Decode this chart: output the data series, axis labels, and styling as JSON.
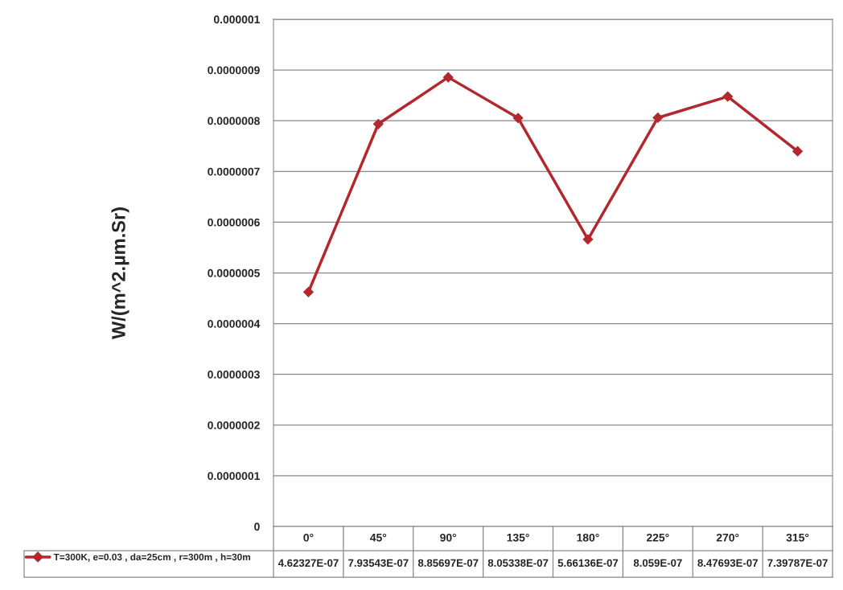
{
  "chart_data": {
    "type": "line",
    "ylabel": "W/(m^2.µm.Sr)",
    "categories": [
      "0°",
      "45°",
      "90°",
      "135°",
      "180°",
      "225°",
      "270°",
      "315°"
    ],
    "series": [
      {
        "name": "T=300K, e=0.03 , da=25cm , r=300m , h=30m",
        "color": "#b3282d",
        "values": [
          4.62327e-07,
          7.93543e-07,
          8.85697e-07,
          8.05338e-07,
          5.66136e-07,
          8.059e-07,
          8.47693e-07,
          7.39787e-07
        ],
        "value_labels": [
          "4.62327E-07",
          "7.93543E-07",
          "8.85697E-07",
          "8.05338E-07",
          "5.66136E-07",
          "8.059E-07",
          "8.47693E-07",
          "7.39787E-07"
        ]
      }
    ],
    "ylim": [
      0,
      1e-06
    ],
    "yticks": [
      0,
      {
        "value": 1e-07,
        "label": "0.0000001"
      },
      {
        "value": 2e-07,
        "label": "0.0000002"
      },
      {
        "value": 3e-07,
        "label": "0.0000003"
      },
      {
        "value": 4e-07,
        "label": "0.0000004"
      },
      {
        "value": 5e-07,
        "label": "0.0000005"
      },
      {
        "value": 6e-07,
        "label": "0.0000006"
      },
      {
        "value": 7e-07,
        "label": "0.0000007"
      },
      {
        "value": 8e-07,
        "label": "0.0000008"
      },
      {
        "value": 9e-07,
        "label": "0.0000009"
      },
      {
        "value": 1e-06,
        "label": "0.000001"
      }
    ],
    "grid": "y",
    "marker": "diamond",
    "line_style": "solid",
    "legend": "bottom left"
  }
}
